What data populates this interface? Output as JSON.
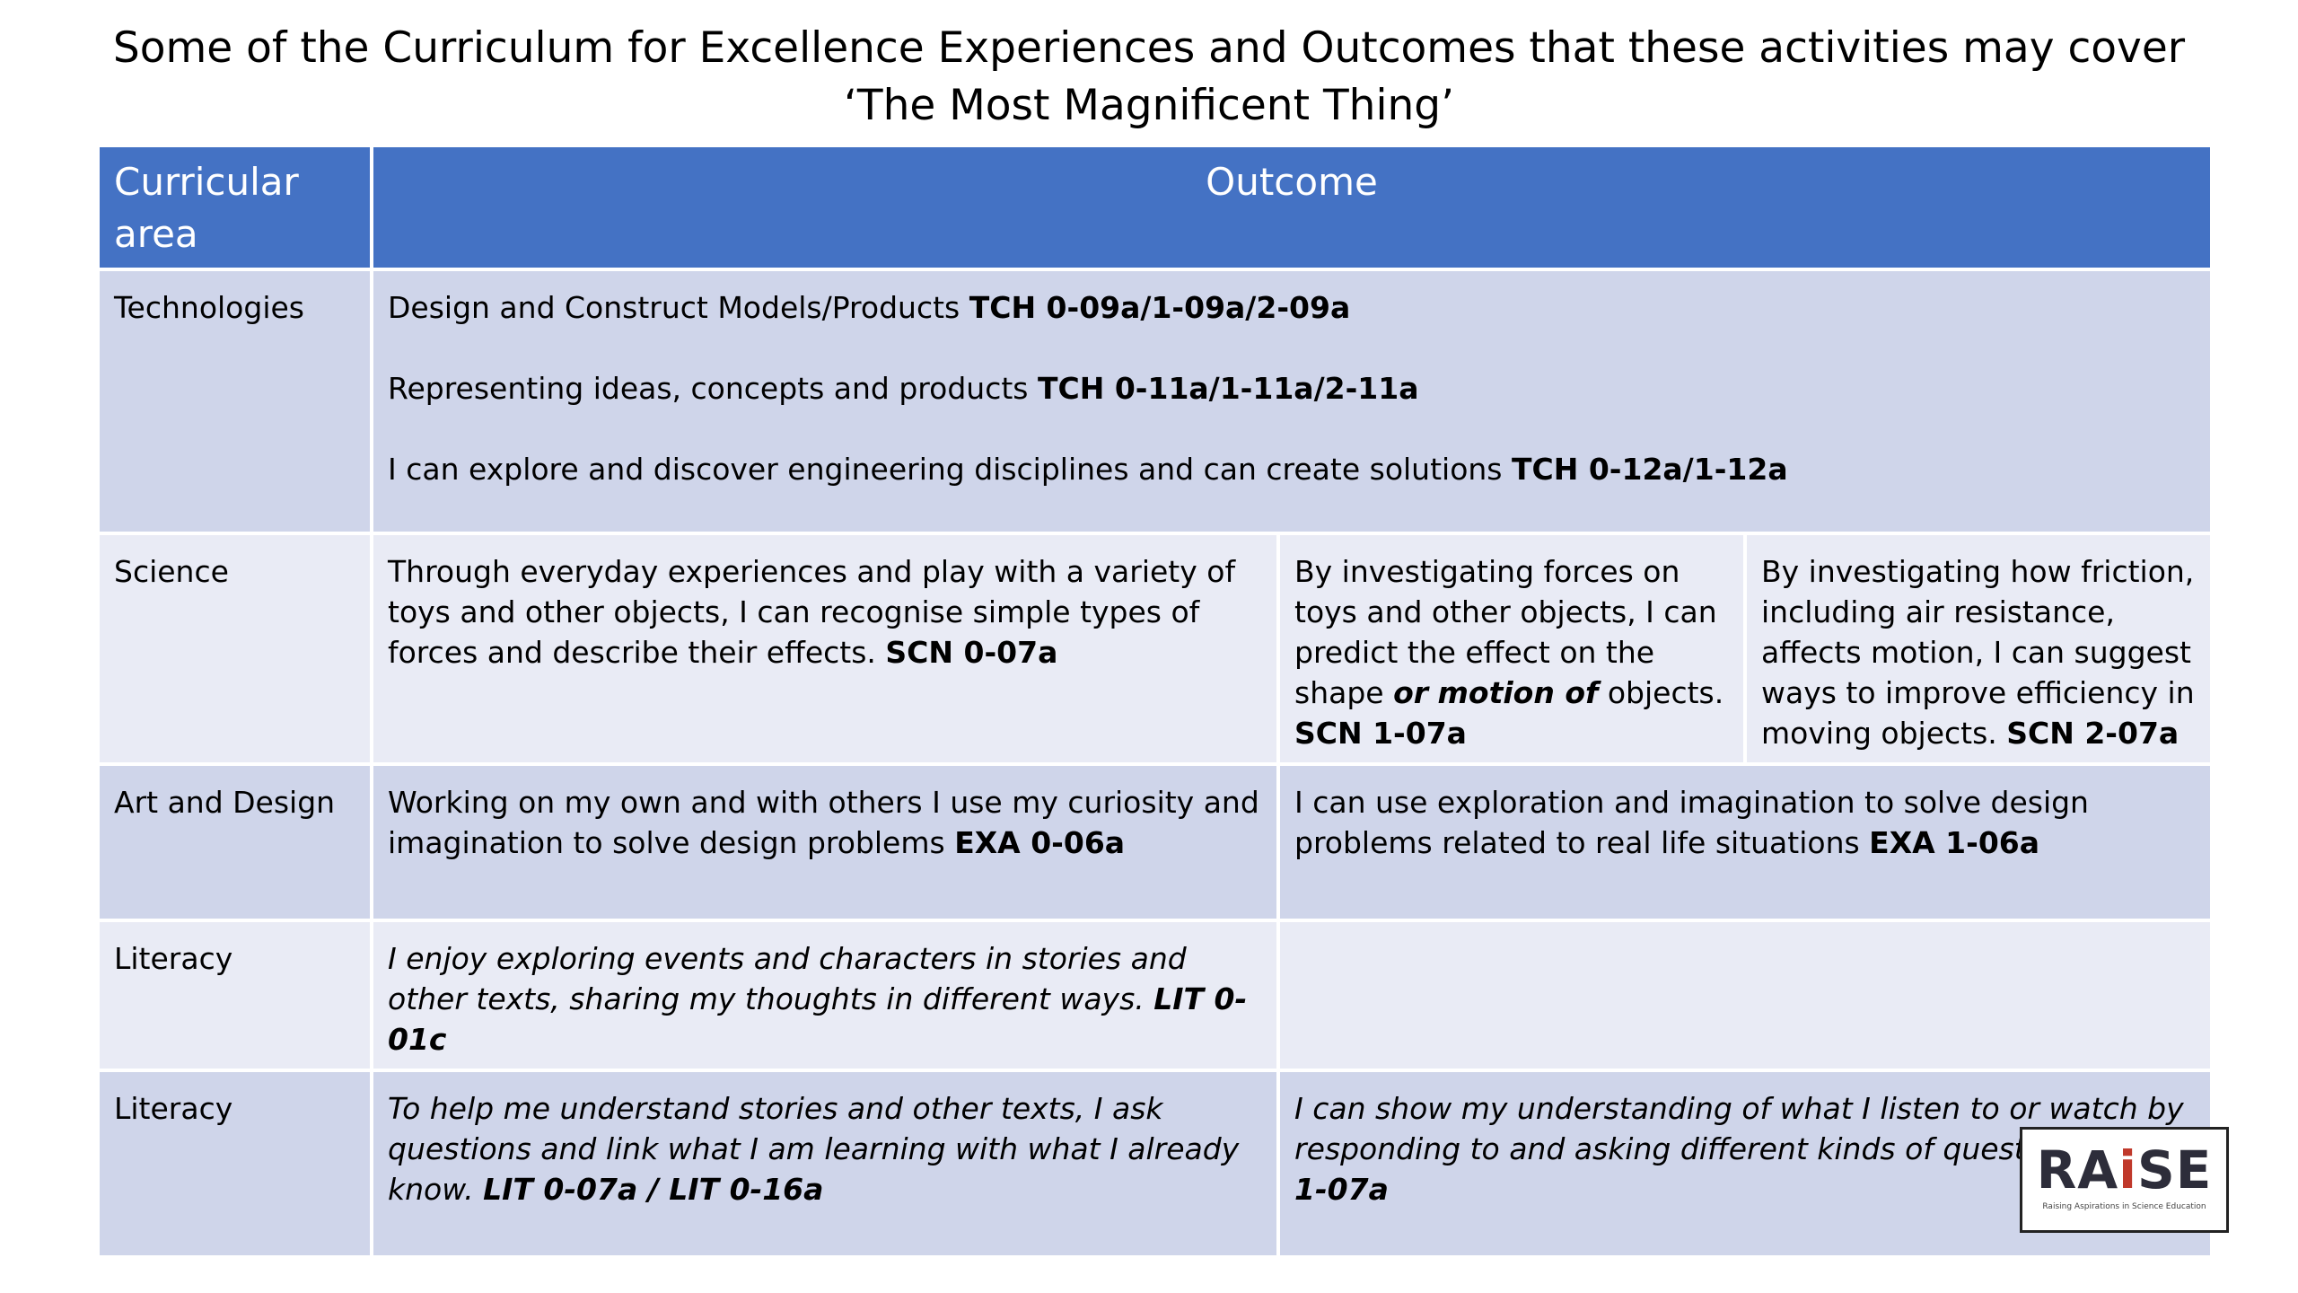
{
  "title": {
    "line1": "Some of the Curriculum for Excellence Experiences and Outcomes that these activities may cover",
    "line2": "‘The Most Magnificent Thing’"
  },
  "table": {
    "headers": {
      "area": "Curricular area",
      "outcome": "Outcome"
    },
    "technologies": {
      "area": "Technologies",
      "lines": [
        {
          "text": "Design and Construct Models/Products ",
          "code": "TCH 0-09a/1-09a/2-09a"
        },
        {
          "text": "Representing ideas, concepts and products ",
          "code": "TCH 0-11a/1-11a/2-11a"
        },
        {
          "text": "I can explore and discover engineering disciplines and can create solutions ",
          "code": "TCH 0-12a/1-12a"
        }
      ]
    },
    "science": {
      "area": "Science",
      "early": {
        "text": "Through everyday experiences and play with a variety of toys and other objects, I can recognise simple types of forces and describe their effects. ",
        "code": "SCN 0-07a"
      },
      "first": {
        "text_a": "By investigating forces on toys and other objects, I can predict the effect on the shape ",
        "emph_a": "or",
        "emph_b": "motion of",
        "text_b": " objects. ",
        "code": "SCN 1-07a"
      },
      "second": {
        "text": "By investigating how friction, including air resistance, affects motion, I can suggest ways to improve efficiency in moving objects. ",
        "code": "SCN 2-07a"
      }
    },
    "art": {
      "area": "Art and Design",
      "early": {
        "text": "Working on my own and with others I use my curiosity and imagination to solve design problems ",
        "code": "EXA 0-06a"
      },
      "first": {
        "text": "I can use exploration and imagination to solve design problems related to real life situations ",
        "code": "EXA 1-06a"
      }
    },
    "literacy1": {
      "area": "Literacy",
      "early": {
        "text": "I enjoy exploring events and characters in stories and other texts, sharing my thoughts in different ways. ",
        "code": "LIT 0-01c"
      }
    },
    "literacy2": {
      "area": "Literacy",
      "early": {
        "text": "To help me understand stories and other texts, I ask questions and link what I am learning with what I already know. ",
        "code": "LIT 0-07a / LIT 0-16a"
      },
      "first": {
        "text": "I can show my understanding of what I listen to or watch by responding to and asking different kinds of questions. ",
        "code": "LIT 1-07a"
      }
    }
  },
  "logo": {
    "word_start": "RA",
    "word_accent": "i",
    "word_end": "SE",
    "tagline": "Raising Aspirations in Science Education"
  },
  "colors": {
    "header": "#4472c4",
    "row_dark": "#cfd5ea",
    "row_light": "#e9ebf5",
    "logo_accent": "#c0392b"
  }
}
